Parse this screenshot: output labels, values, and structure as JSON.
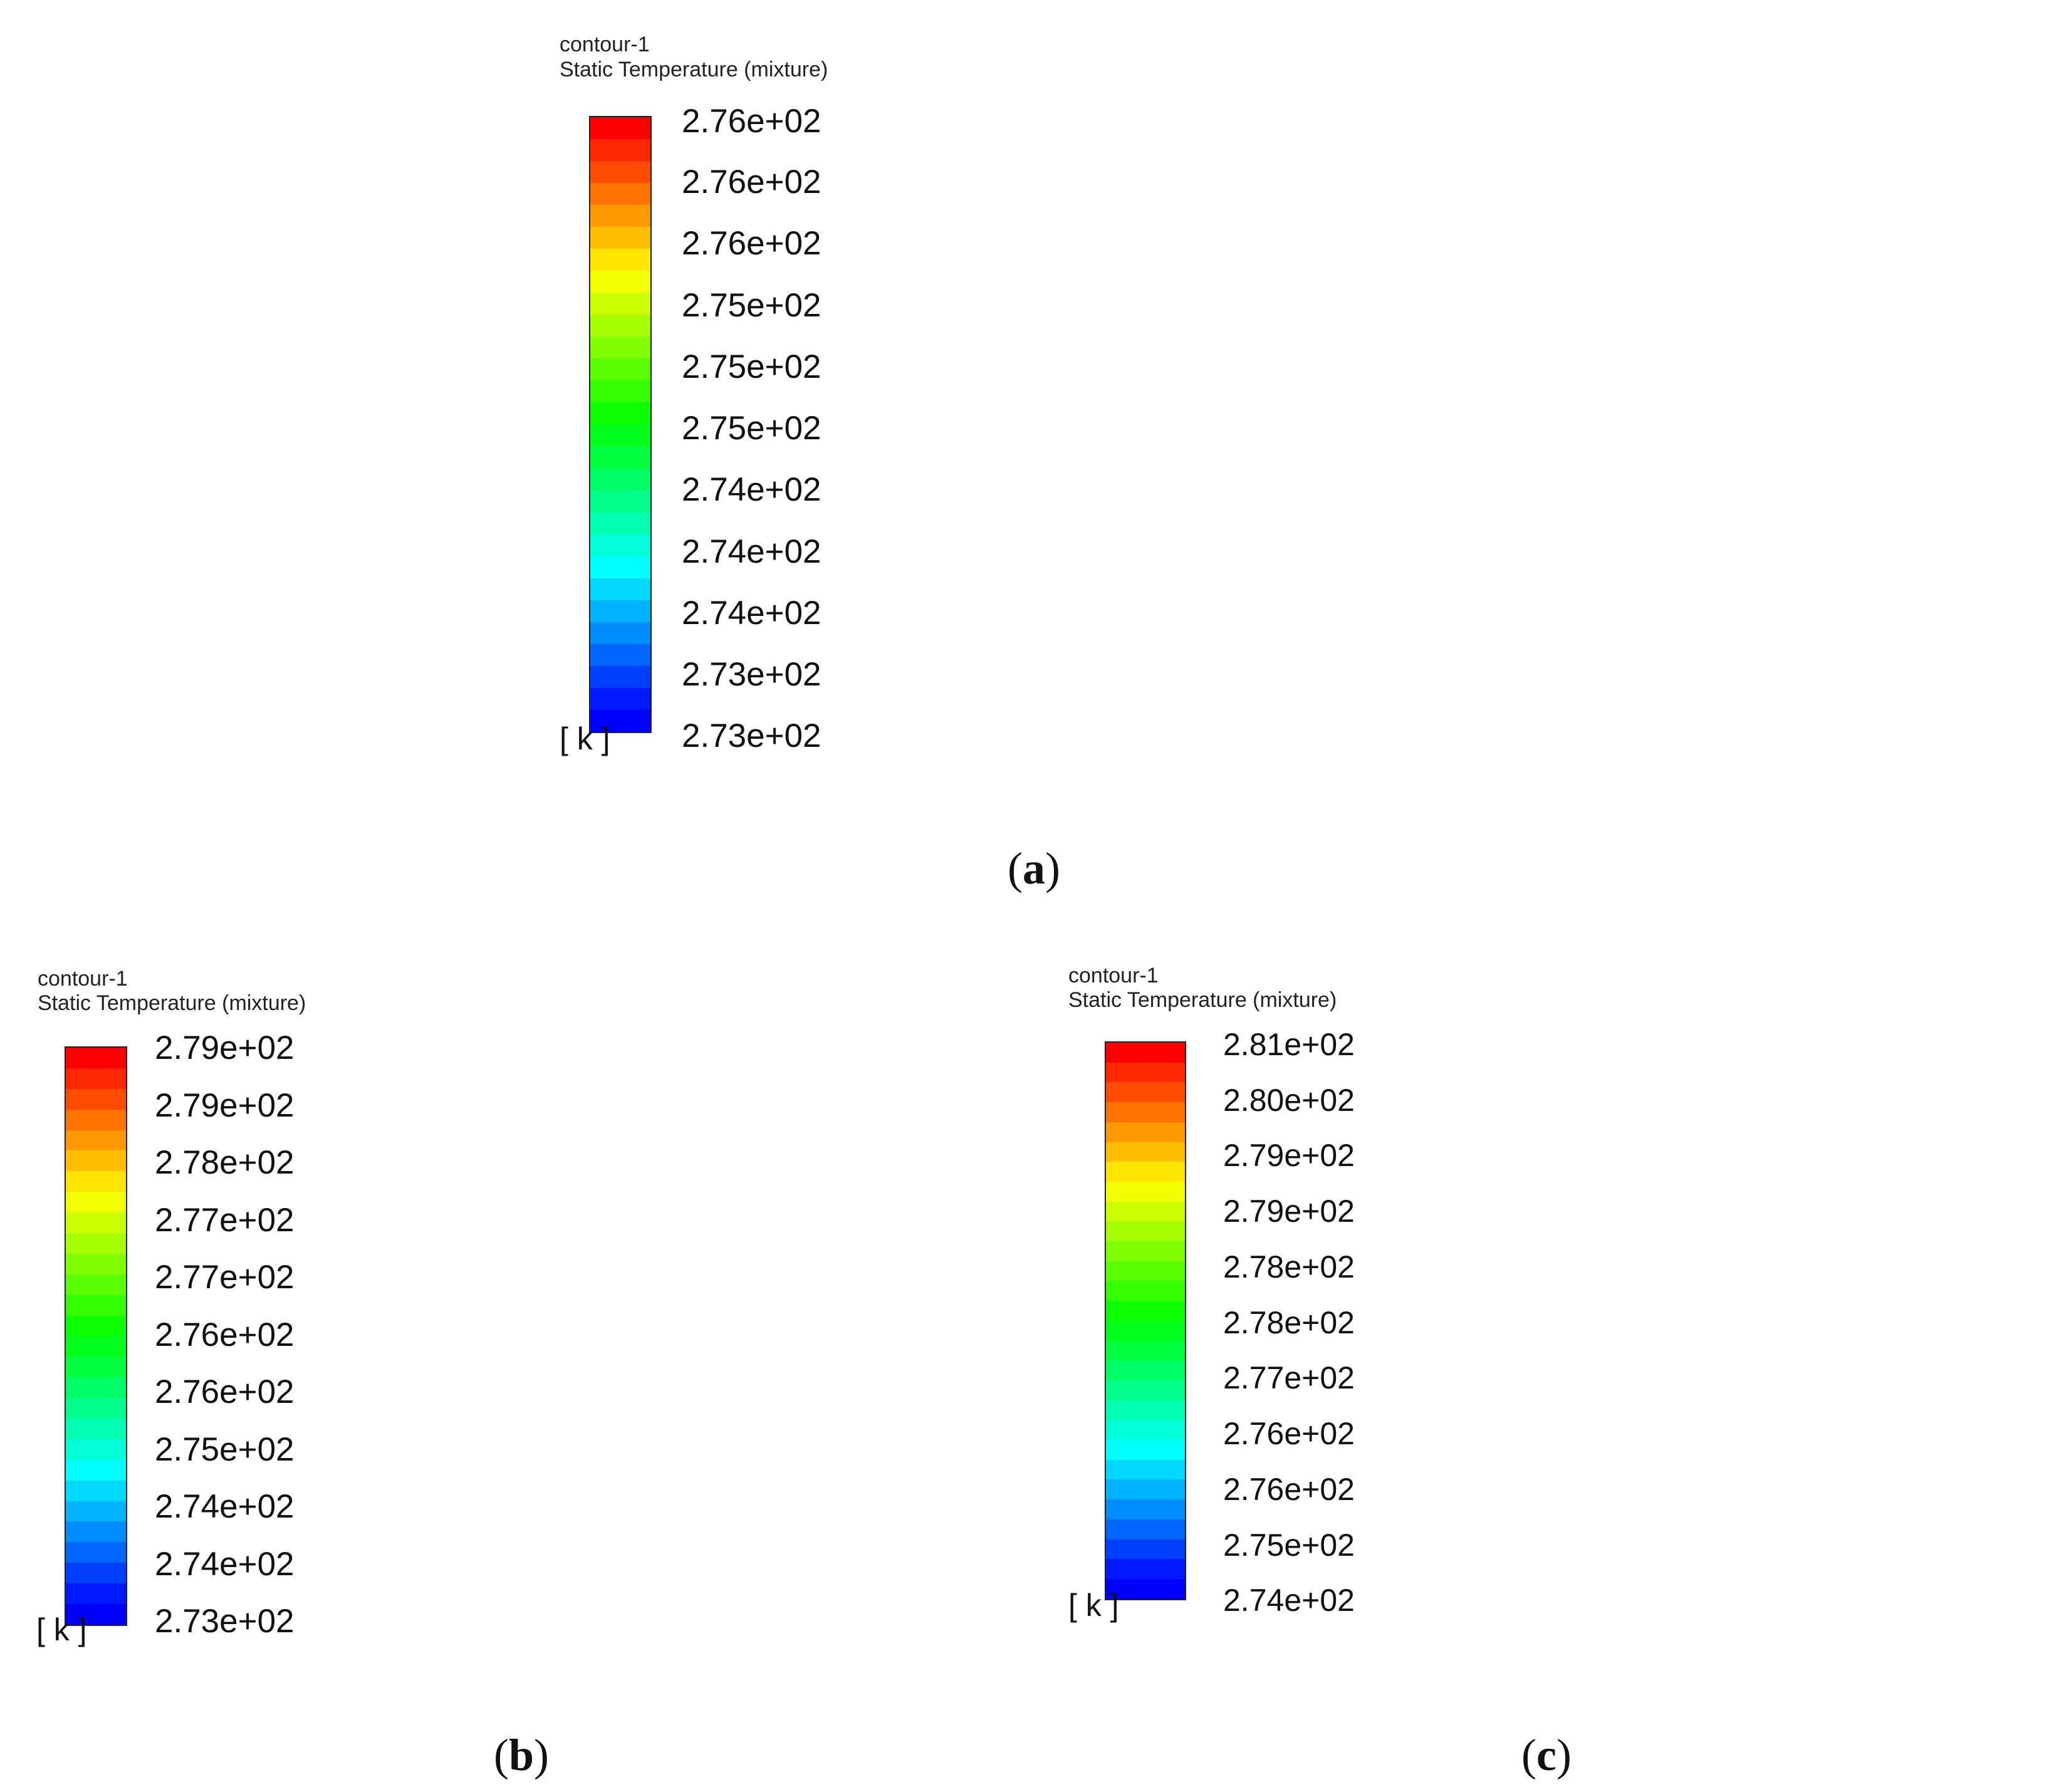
{
  "palette": [
    "#ff0000",
    "#ff2600",
    "#ff4c00",
    "#ff7300",
    "#ff9900",
    "#ffbf00",
    "#ffe500",
    "#f2ff00",
    "#ccff00",
    "#a6ff00",
    "#7fff00",
    "#59ff00",
    "#33ff00",
    "#0cff00",
    "#00ff19",
    "#00ff3f",
    "#00ff66",
    "#00ff8c",
    "#00ffb2",
    "#00ffd8",
    "#00ffff",
    "#00d8ff",
    "#00b2ff",
    "#008cff",
    "#0066ff",
    "#003fff",
    "#0019ff",
    "#0000ff"
  ],
  "panels": [
    {
      "id": "a",
      "title_line1": "contour-1",
      "title_line2": "Static Temperature (mixture)",
      "unit": "[ k ]",
      "ticks": [
        "2.76e+02",
        "2.76e+02",
        "2.76e+02",
        "2.75e+02",
        "2.75e+02",
        "2.75e+02",
        "2.74e+02",
        "2.74e+02",
        "2.74e+02",
        "2.73e+02",
        "2.73e+02"
      ],
      "caption_open": "(",
      "caption_letter": "a",
      "caption_close": ")"
    },
    {
      "id": "b",
      "title_line1": "contour-1",
      "title_line2": "Static Temperature (mixture)",
      "unit": "[ k ]",
      "ticks": [
        "2.79e+02",
        "2.79e+02",
        "2.78e+02",
        "2.77e+02",
        "2.77e+02",
        "2.76e+02",
        "2.76e+02",
        "2.75e+02",
        "2.74e+02",
        "2.74e+02",
        "2.73e+02"
      ],
      "caption_open": "(",
      "caption_letter": "b",
      "caption_close": ")"
    },
    {
      "id": "c",
      "title_line1": "contour-1",
      "title_line2": "Static Temperature (mixture)",
      "unit": "[ k ]",
      "ticks": [
        "2.81e+02",
        "2.80e+02",
        "2.79e+02",
        "2.79e+02",
        "2.78e+02",
        "2.78e+02",
        "2.77e+02",
        "2.76e+02",
        "2.76e+02",
        "2.75e+02",
        "2.74e+02"
      ],
      "caption_open": "(",
      "caption_letter": "c",
      "caption_close": ")"
    }
  ]
}
